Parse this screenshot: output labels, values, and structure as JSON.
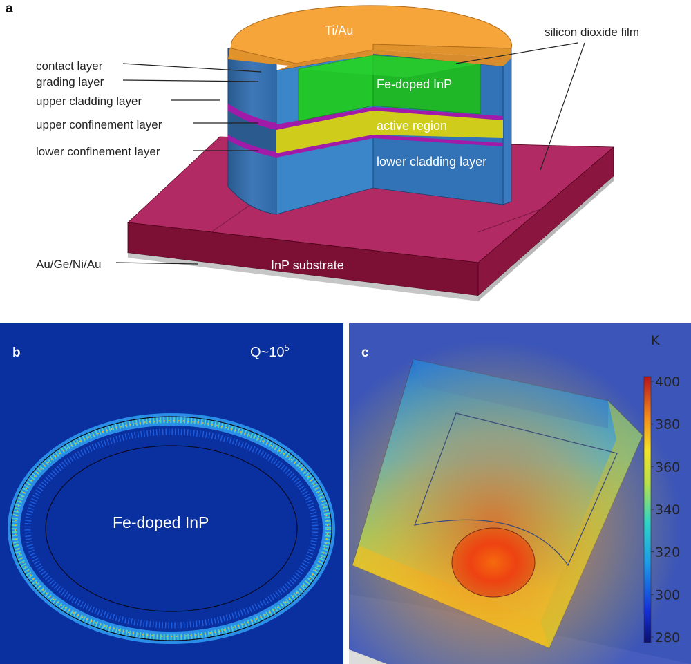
{
  "panels": {
    "a": "a",
    "b": "b",
    "c": "c"
  },
  "panel_a": {
    "labels": {
      "top_metal": "Ti/Au",
      "oxide": "silicon dioxide film",
      "contact": "contact layer",
      "grading": "grading layer",
      "upper_clad": "upper cladding layer",
      "upper_conf": "upper confinement layer",
      "lower_conf": "lower confinement layer",
      "fe_inp": "Fe-doped InP",
      "active": "active region",
      "lower_clad": "lower cladding layer",
      "bottom_metal": "Au/Ge/Ni/Au",
      "substrate": "InP substrate"
    }
  },
  "panel_b": {
    "q_base": "Q~10",
    "q_exp": "5",
    "center_label": "Fe-doped InP"
  },
  "panel_c": {
    "unit": "K",
    "colorbar_ticks": [
      "400",
      "380",
      "360",
      "340",
      "320",
      "300",
      "280"
    ]
  },
  "colors": {
    "ti_au": "#f5a53a",
    "fe_inp": "#22c52a",
    "active": "#cfcc1c",
    "cladding": "#3b86c8",
    "confinement": "#a21aa8",
    "substrate_top": "#b0265f",
    "substrate_side": "#7a0e30",
    "field_bg": "#0a2f9e"
  }
}
